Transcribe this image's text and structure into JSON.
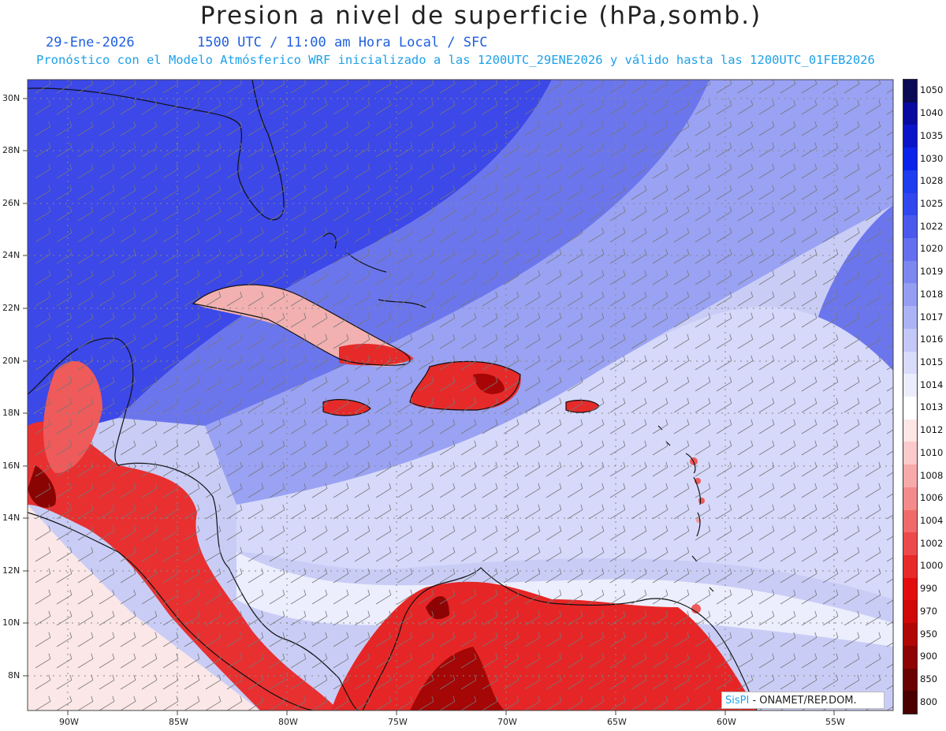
{
  "title": "Presion a nivel de superficie (hPa,somb.)",
  "subtitle": {
    "date": "29-Ene-2026",
    "time": "1500 UTC / 11:00 am Hora Local / SFC",
    "model_info": "Pronóstico con el Modelo Atmósferico WRF inicializado a las 1200UTC_29ENE2026 y válido hasta las  1200UTC_01FEB2026"
  },
  "map": {
    "lat_labels": [
      "30N",
      "28N",
      "26N",
      "24N",
      "22N",
      "20N",
      "18N",
      "16N",
      "14N",
      "12N",
      "10N",
      "8N"
    ],
    "lon_labels": [
      "90W",
      "85W",
      "80W",
      "75W",
      "70W",
      "65W",
      "60W",
      "55W"
    ],
    "ocean_colors": {
      "high": "#3b46e6",
      "mid": "#6e78ec",
      "low": "#c8ccf5",
      "near": "#e6e8fb"
    }
  },
  "colorbar": {
    "levels": [
      "1050",
      "1040",
      "1035",
      "1030",
      "1028",
      "1025",
      "1022",
      "1020",
      "1019",
      "1018",
      "1017",
      "1016",
      "1015",
      "1014",
      "1013",
      "1012",
      "1010",
      "1008",
      "1006",
      "1004",
      "1002",
      "1000",
      "990",
      "970",
      "950",
      "900",
      "850",
      "800"
    ],
    "colors": [
      "#0a0a55",
      "#080aa0",
      "#0a14c8",
      "#0a22ea",
      "#1e3cf0",
      "#3146ee",
      "#4a58ee",
      "#6470ef",
      "#7d87f1",
      "#959ef3",
      "#acb3f5",
      "#c3c8f8",
      "#d8dbfa",
      "#ebedfd",
      "#ffffff",
      "#fde6e6",
      "#fbcaca",
      "#f8aaaa",
      "#f48a8a",
      "#f06a6a",
      "#ec4a4a",
      "#e82a2a",
      "#e40d0d",
      "#d00808",
      "#b00606",
      "#8e0404",
      "#6a0202",
      "#4a0000"
    ]
  },
  "credit": {
    "logo": "SisPI",
    "org": " - ONAMET/REP.DOM."
  }
}
